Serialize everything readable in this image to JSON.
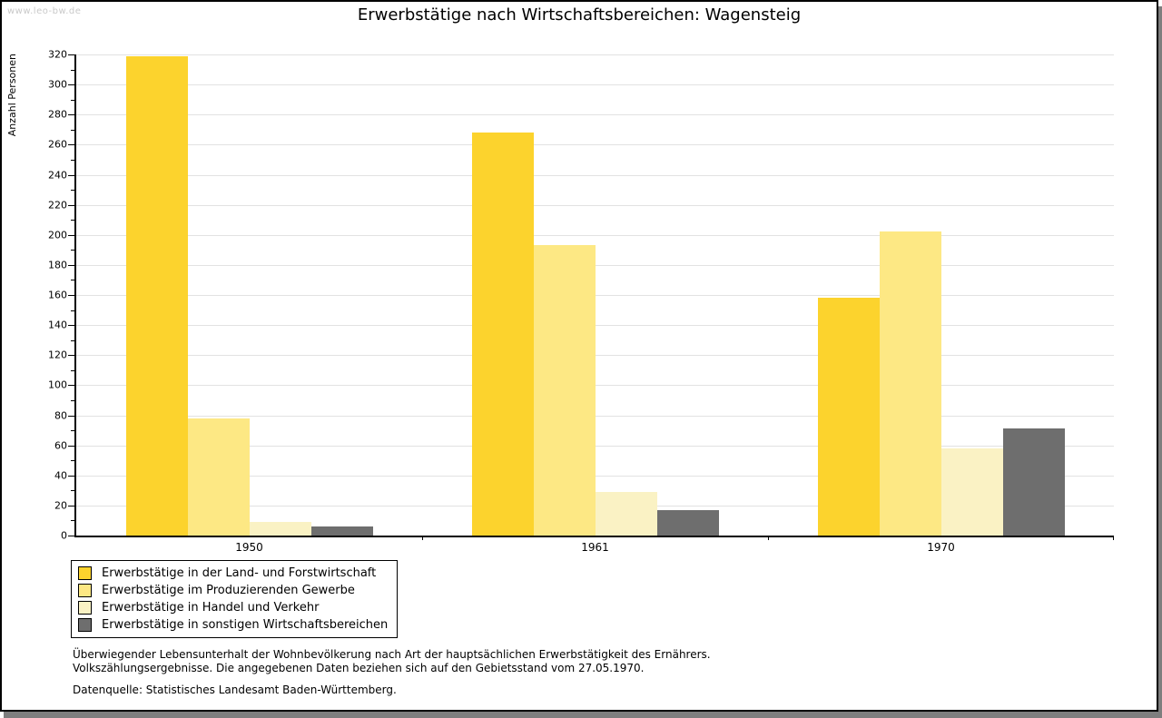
{
  "watermark": "www.leo-bw.de",
  "title": "Erwerbstätige nach Wirtschaftsbereichen: Wagensteig",
  "chart_data": {
    "type": "bar",
    "grouped": true,
    "title": "Erwerbstätige nach Wirtschaftsbereichen: Wagensteig",
    "categories": [
      "1950",
      "1961",
      "1970"
    ],
    "series": [
      {
        "name": "Erwerbstätige in der Land- und Forstwirtschaft",
        "color": "#FCD32D",
        "values": [
          319,
          268,
          158
        ]
      },
      {
        "name": "Erwerbstätige im Produzierenden Gewerbe",
        "color": "#FDE884",
        "values": [
          78,
          193,
          202
        ]
      },
      {
        "name": "Erwerbstätige in Handel und Verkehr",
        "color": "#FAF2C4",
        "values": [
          9,
          29,
          58
        ]
      },
      {
        "name": "Erwerbstätige in sonstigen Wirtschaftsbereichen",
        "color": "#6E6E6E",
        "values": [
          6,
          17,
          71
        ]
      }
    ],
    "xlabel": "",
    "ylabel": "Anzahl Personen",
    "ylim": [
      0,
      320
    ],
    "ytick_major_step": 20,
    "ytick_minor_step": 10,
    "grid": true,
    "legend_position": "below-left"
  },
  "footnotes": [
    "Überwiegender Lebensunterhalt der Wohnbevölkerung nach Art der hauptsächlichen Erwerbstätigkeit des Ernährers.",
    "Volkszählungsergebnisse. Die angegebenen Daten beziehen sich auf den Gebietsstand vom 27.05.1970."
  ],
  "datasource": "Datenquelle: Statistisches Landesamt Baden-Württemberg.",
  "colors": {
    "axis": "#000000",
    "gridline": "#E2E2E2",
    "watermark": "#C9C9C9",
    "shadow": "#7E7E7E",
    "background": "#FFFFFF"
  }
}
